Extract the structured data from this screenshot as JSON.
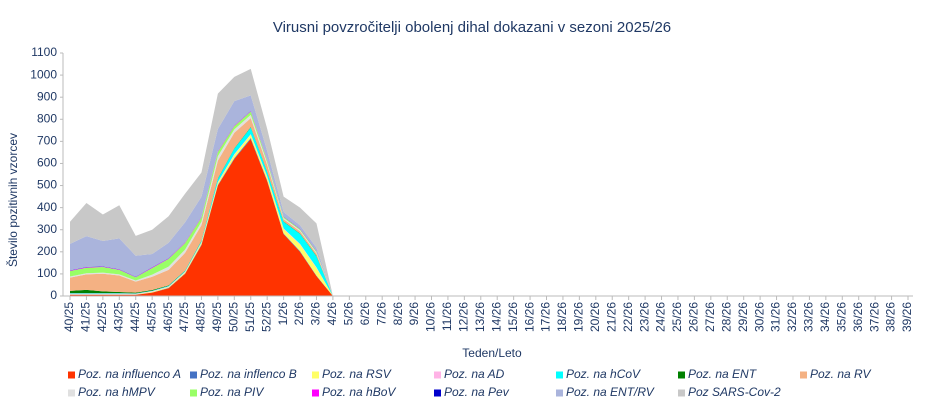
{
  "chart_data": {
    "type": "stacked_area",
    "title": "Virusni povzročitelji  obolenj dihal dokazani v sezoni 2025/26",
    "x_label": "Teden/Leto",
    "y_label": "Število pozitivnih vzorcev",
    "categories": [
      "40/25",
      "41/25",
      "42/25",
      "43/25",
      "44/25",
      "45/25",
      "46/25",
      "47/25",
      "48/25",
      "49/25",
      "50/25",
      "51/25",
      "52/25",
      "1/26",
      "2/26",
      "3/26",
      "4/26",
      "5/26",
      "6/26",
      "7/26",
      "8/26",
      "9/26",
      "10/26",
      "11/26",
      "12/26",
      "13/26",
      "14/26",
      "15/26",
      "16/26",
      "17/26",
      "18/26",
      "19/26",
      "20/26",
      "21/26",
      "22/26",
      "23/26",
      "24/26",
      "25/26",
      "26/26",
      "27/26",
      "28/26",
      "29/26",
      "30/26",
      "31/26",
      "32/26",
      "33/26",
      "34/26",
      "35/26",
      "36/26",
      "37/26",
      "38/26",
      "39/26"
    ],
    "ylim": [
      0,
      1100
    ],
    "yticks": [
      0,
      100,
      200,
      300,
      400,
      500,
      600,
      700,
      800,
      900,
      1000,
      1100
    ],
    "series": [
      {
        "name": "Poz. na influenco A",
        "color": "#ff3300",
        "values": [
          5,
          5,
          5,
          5,
          5,
          15,
          35,
          100,
          230,
          500,
          620,
          710,
          520,
          280,
          200,
          90,
          0,
          null,
          null,
          null,
          null,
          null,
          null,
          null,
          null,
          null,
          null,
          null,
          null,
          null,
          null,
          null,
          null,
          null,
          null,
          null,
          null,
          null,
          null,
          null,
          null,
          null,
          null,
          null,
          null,
          null,
          null,
          null,
          null,
          null,
          null,
          null
        ]
      },
      {
        "name": "Poz. na inflenco B",
        "color": "#4472c4",
        "values": [
          1,
          1,
          1,
          1,
          1,
          1,
          2,
          2,
          3,
          3,
          4,
          5,
          4,
          3,
          3,
          2,
          0,
          null,
          null,
          null,
          null,
          null,
          null,
          null,
          null,
          null,
          null,
          null,
          null,
          null,
          null,
          null,
          null,
          null,
          null,
          null,
          null,
          null,
          null,
          null,
          null,
          null,
          null,
          null,
          null,
          null,
          null,
          null,
          null,
          null,
          null,
          null
        ]
      },
      {
        "name": "Poz. na RSV",
        "color": "#ffff66",
        "values": [
          2,
          2,
          2,
          2,
          2,
          3,
          3,
          5,
          8,
          10,
          15,
          15,
          15,
          20,
          30,
          35,
          0,
          null,
          null,
          null,
          null,
          null,
          null,
          null,
          null,
          null,
          null,
          null,
          null,
          null,
          null,
          null,
          null,
          null,
          null,
          null,
          null,
          null,
          null,
          null,
          null,
          null,
          null,
          null,
          null,
          null,
          null,
          null,
          null,
          null,
          null,
          null
        ]
      },
      {
        "name": "Poz. na AD",
        "color": "#ffb3e6",
        "values": [
          3,
          3,
          3,
          3,
          2,
          3,
          3,
          3,
          3,
          3,
          3,
          3,
          3,
          3,
          3,
          3,
          0,
          null,
          null,
          null,
          null,
          null,
          null,
          null,
          null,
          null,
          null,
          null,
          null,
          null,
          null,
          null,
          null,
          null,
          null,
          null,
          null,
          null,
          null,
          null,
          null,
          null,
          null,
          null,
          null,
          null,
          null,
          null,
          null,
          null,
          null,
          null
        ]
      },
      {
        "name": "Poz. na hCoV",
        "color": "#00ffff",
        "values": [
          2,
          2,
          2,
          2,
          2,
          2,
          3,
          3,
          5,
          15,
          25,
          30,
          20,
          30,
          45,
          50,
          0,
          null,
          null,
          null,
          null,
          null,
          null,
          null,
          null,
          null,
          null,
          null,
          null,
          null,
          null,
          null,
          null,
          null,
          null,
          null,
          null,
          null,
          null,
          null,
          null,
          null,
          null,
          null,
          null,
          null,
          null,
          null,
          null,
          null,
          null,
          null
        ]
      },
      {
        "name": "Poz. na ENT",
        "color": "#008000",
        "values": [
          10,
          15,
          8,
          5,
          3,
          3,
          2,
          2,
          2,
          2,
          2,
          2,
          2,
          2,
          2,
          2,
          0,
          null,
          null,
          null,
          null,
          null,
          null,
          null,
          null,
          null,
          null,
          null,
          null,
          null,
          null,
          null,
          null,
          null,
          null,
          null,
          null,
          null,
          null,
          null,
          null,
          null,
          null,
          null,
          null,
          null,
          null,
          null,
          null,
          null,
          null,
          null
        ]
      },
      {
        "name": "Poz. na RV",
        "color": "#f4b183",
        "values": [
          60,
          70,
          80,
          75,
          50,
          60,
          70,
          80,
          70,
          80,
          70,
          40,
          30,
          10,
          10,
          10,
          0,
          null,
          null,
          null,
          null,
          null,
          null,
          null,
          null,
          null,
          null,
          null,
          null,
          null,
          null,
          null,
          null,
          null,
          null,
          null,
          null,
          null,
          null,
          null,
          null,
          null,
          null,
          null,
          null,
          null,
          null,
          null,
          null,
          null,
          null,
          null
        ]
      },
      {
        "name": "Poz. na hMPV",
        "color": "#e0e0e0",
        "values": [
          5,
          5,
          5,
          5,
          5,
          10,
          15,
          15,
          15,
          20,
          15,
          15,
          10,
          5,
          5,
          5,
          0,
          null,
          null,
          null,
          null,
          null,
          null,
          null,
          null,
          null,
          null,
          null,
          null,
          null,
          null,
          null,
          null,
          null,
          null,
          null,
          null,
          null,
          null,
          null,
          null,
          null,
          null,
          null,
          null,
          null,
          null,
          null,
          null,
          null,
          null,
          null
        ]
      },
      {
        "name": "Poz. na PIV",
        "color": "#99ff66",
        "values": [
          25,
          25,
          25,
          20,
          15,
          30,
          35,
          30,
          20,
          20,
          15,
          15,
          10,
          5,
          5,
          5,
          0,
          null,
          null,
          null,
          null,
          null,
          null,
          null,
          null,
          null,
          null,
          null,
          null,
          null,
          null,
          null,
          null,
          null,
          null,
          null,
          null,
          null,
          null,
          null,
          null,
          null,
          null,
          null,
          null,
          null,
          null,
          null,
          null,
          null,
          null,
          null
        ]
      },
      {
        "name": "Poz. na hBoV",
        "color": "#ff00ff",
        "values": [
          2,
          2,
          2,
          2,
          1,
          2,
          2,
          2,
          2,
          2,
          2,
          2,
          2,
          1,
          1,
          1,
          0,
          null,
          null,
          null,
          null,
          null,
          null,
          null,
          null,
          null,
          null,
          null,
          null,
          null,
          null,
          null,
          null,
          null,
          null,
          null,
          null,
          null,
          null,
          null,
          null,
          null,
          null,
          null,
          null,
          null,
          null,
          null,
          null,
          null,
          null,
          null
        ]
      },
      {
        "name": "Poz. na Pev",
        "color": "#0000cc",
        "values": [
          1,
          1,
          1,
          1,
          1,
          1,
          1,
          1,
          1,
          1,
          1,
          1,
          1,
          1,
          1,
          1,
          0,
          null,
          null,
          null,
          null,
          null,
          null,
          null,
          null,
          null,
          null,
          null,
          null,
          null,
          null,
          null,
          null,
          null,
          null,
          null,
          null,
          null,
          null,
          null,
          null,
          null,
          null,
          null,
          null,
          null,
          null,
          null,
          null,
          null,
          null,
          null
        ]
      },
      {
        "name": "Poz. na ENT/RV",
        "color": "#aab4dc",
        "values": [
          120,
          140,
          115,
          140,
          95,
          60,
          70,
          90,
          90,
          100,
          110,
          70,
          40,
          20,
          15,
          15,
          0,
          null,
          null,
          null,
          null,
          null,
          null,
          null,
          null,
          null,
          null,
          null,
          null,
          null,
          null,
          null,
          null,
          null,
          null,
          null,
          null,
          null,
          null,
          null,
          null,
          null,
          null,
          null,
          null,
          null,
          null,
          null,
          null,
          null,
          null,
          null
        ]
      },
      {
        "name": "Poz  SARS-Cov-2",
        "color": "#c8c8c8",
        "values": [
          100,
          150,
          120,
          150,
          90,
          110,
          120,
          130,
          110,
          160,
          110,
          120,
          100,
          70,
          80,
          110,
          0,
          null,
          null,
          null,
          null,
          null,
          null,
          null,
          null,
          null,
          null,
          null,
          null,
          null,
          null,
          null,
          null,
          null,
          null,
          null,
          null,
          null,
          null,
          null,
          null,
          null,
          null,
          null,
          null,
          null,
          null,
          null,
          null,
          null,
          null,
          null
        ]
      }
    ]
  }
}
